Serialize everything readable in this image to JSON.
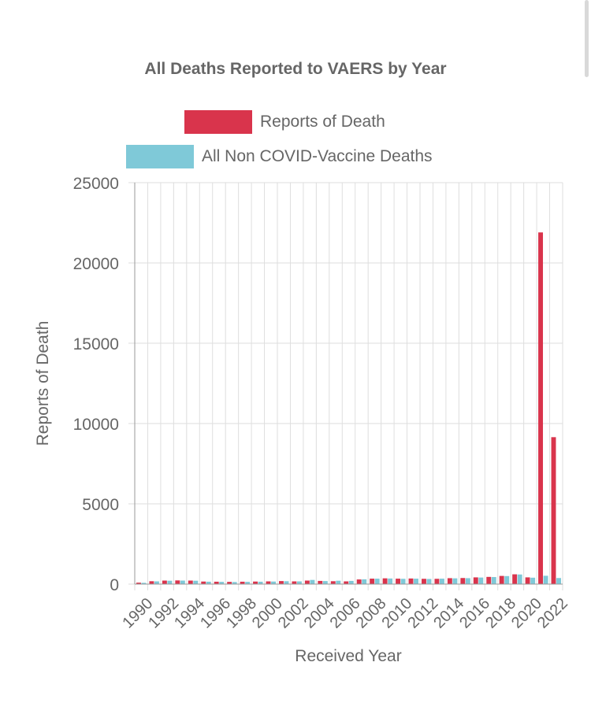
{
  "chart_data": {
    "type": "bar",
    "title": "All Deaths Reported to VAERS by Year",
    "xlabel": "Received Year",
    "ylabel": "Reports of Death",
    "ylim": [
      0,
      25000
    ],
    "yticks": [
      "25000",
      "20000",
      "15000",
      "10000",
      "5000",
      "0"
    ],
    "categories": [
      1990,
      1991,
      1992,
      1993,
      1994,
      1995,
      1996,
      1997,
      1998,
      1999,
      2000,
      2001,
      2002,
      2003,
      2004,
      2005,
      2006,
      2007,
      2008,
      2009,
      2010,
      2011,
      2012,
      2013,
      2014,
      2015,
      2016,
      2017,
      2018,
      2019,
      2020,
      2021,
      2022
    ],
    "xtick_labels": [
      "1990",
      "1992",
      "1994",
      "1996",
      "1998",
      "2000",
      "2002",
      "2004",
      "2006",
      "2008",
      "2010",
      "2012",
      "2014",
      "2016",
      "2018",
      "2020",
      "2022"
    ],
    "series": [
      {
        "name": "Reports of Death",
        "color": "#d9344c",
        "values": [
          90,
          180,
          220,
          230,
          220,
          160,
          150,
          140,
          150,
          160,
          170,
          190,
          170,
          220,
          200,
          180,
          170,
          290,
          340,
          360,
          340,
          350,
          330,
          330,
          370,
          380,
          420,
          450,
          510,
          610,
          420,
          21900,
          9150
        ]
      },
      {
        "name": "All Non COVID-Vaccine Deaths",
        "color": "#7fc9d8",
        "values": [
          80,
          170,
          210,
          220,
          210,
          150,
          140,
          130,
          140,
          150,
          160,
          180,
          170,
          260,
          190,
          210,
          200,
          300,
          340,
          350,
          330,
          340,
          320,
          340,
          360,
          370,
          410,
          440,
          500,
          600,
          400,
          520,
          380
        ]
      }
    ],
    "grid": true,
    "legend_position": "top"
  }
}
